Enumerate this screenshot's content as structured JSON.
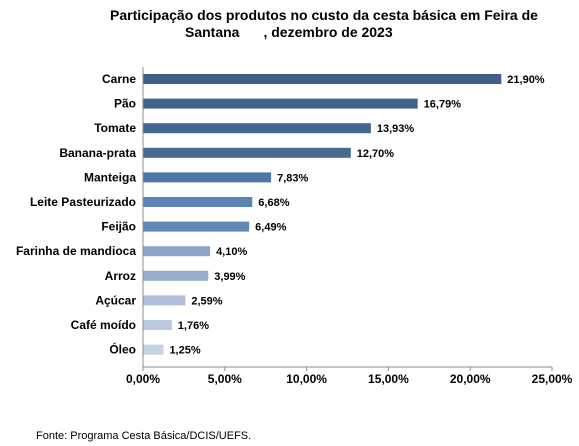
{
  "chart_data": {
    "type": "bar",
    "orientation": "horizontal",
    "title_line1": "Participação dos produtos no custo da cesta básica em Feira de",
    "title_line2_a": "Santana",
    "title_line2_b": ", dezembro de 2023",
    "categories": [
      "Carne",
      "Pão",
      "Tomate",
      "Banana-prata",
      "Manteiga",
      "Leite Pasteurizado",
      "Feijão",
      "Farinha de mandioca",
      "Arroz",
      "Açúcar",
      "Café moído",
      "Óleo"
    ],
    "values": [
      21.9,
      16.79,
      13.93,
      12.7,
      7.83,
      6.68,
      6.49,
      4.1,
      3.99,
      2.59,
      1.76,
      1.25
    ],
    "value_labels": [
      "21,90%",
      "16,79%",
      "13,93%",
      "12,70%",
      "7,83%",
      "6,68%",
      "6,49%",
      "4,10%",
      "3,99%",
      "2,59%",
      "1,76%",
      "1,25%"
    ],
    "bar_colors": [
      "#3f5f86",
      "#40628b",
      "#42668f",
      "#466a92",
      "#4f76a4",
      "#5b84b2",
      "#6289b6",
      "#8ea5c5",
      "#97acca",
      "#aebfd7",
      "#bac9de",
      "#c6d3e5"
    ],
    "xlim": [
      0,
      25
    ],
    "xticks": [
      0,
      5,
      10,
      15,
      20,
      25
    ],
    "xtick_labels": [
      "0,00%",
      "5,00%",
      "10,00%",
      "15,00%",
      "20,00%",
      "25,00%"
    ],
    "grid": false,
    "legend": "none"
  },
  "source": "Fonte: Programa Cesta Básica/DCIS/UEFS."
}
